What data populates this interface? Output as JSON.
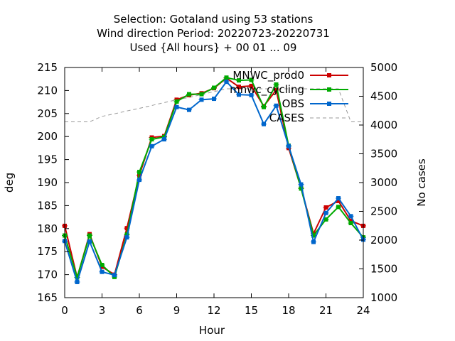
{
  "chart_data": {
    "type": "line",
    "title_lines": [
      "Selection: Gotaland using    53 stations",
      "Wind direction   Period: 20220723-20220731",
      "Used {All hours} + 00 01 ... 09"
    ],
    "xlabel": "Hour",
    "ylabel": "deg",
    "y2label": "No cases",
    "xlim": [
      0,
      24
    ],
    "ylim": [
      165,
      215
    ],
    "y2lim": [
      1000,
      5000
    ],
    "xticks": [
      0,
      3,
      6,
      9,
      12,
      15,
      18,
      21,
      24
    ],
    "yticks": [
      165,
      170,
      175,
      180,
      185,
      190,
      195,
      200,
      205,
      210,
      215
    ],
    "y2ticks": [
      1000,
      1500,
      2000,
      2500,
      3000,
      3500,
      4000,
      4500,
      5000
    ],
    "grid": false,
    "legend_position": "top-right",
    "x": [
      0,
      1,
      2,
      3,
      4,
      5,
      6,
      7,
      8,
      9,
      10,
      11,
      12,
      13,
      14,
      15,
      16,
      17,
      18,
      19,
      20,
      21,
      22,
      23,
      24
    ],
    "series": [
      {
        "name": "MNWC_prod0",
        "color": "#cc0000",
        "values": [
          180.6,
          169.4,
          178.8,
          171.7,
          170.0,
          180.1,
          191.6,
          199.8,
          200.1,
          208.0,
          209.0,
          209.4,
          210.5,
          212.7,
          210.8,
          211.0,
          206.6,
          210.1,
          197.5,
          188.8,
          178.9,
          184.6,
          186.0,
          181.7,
          180.6
        ]
      },
      {
        "name": "mnwc_cycling",
        "color": "#00aa00",
        "values": [
          178.5,
          169.4,
          178.5,
          172.1,
          169.5,
          178.7,
          192.3,
          199.4,
          199.9,
          207.6,
          209.2,
          209.2,
          210.6,
          212.8,
          212.2,
          212.3,
          206.4,
          211.3,
          198.0,
          188.7,
          178.5,
          182.0,
          184.7,
          181.2,
          178.1
        ]
      },
      {
        "name": "OBS",
        "color": "#0066cc",
        "values": [
          177.3,
          168.4,
          177.2,
          170.6,
          169.9,
          178.1,
          190.6,
          197.9,
          199.4,
          206.4,
          205.8,
          208.0,
          208.2,
          211.9,
          209.1,
          209.0,
          202.7,
          206.7,
          197.9,
          189.6,
          177.1,
          183.4,
          186.6,
          182.7,
          177.6
        ]
      },
      {
        "name": "CASES",
        "color": "#999999",
        "axis": "right",
        "x": [
          0,
          1,
          2,
          3,
          4,
          5,
          6,
          7,
          8,
          9,
          10,
          11,
          12,
          13,
          14,
          15,
          16,
          17,
          18,
          19,
          20,
          21,
          22,
          23,
          24
        ],
        "values": [
          4055,
          4055,
          4055,
          4150,
          4195,
          4245,
          4290,
          4340,
          4390,
          4440,
          4480,
          4530,
          4580,
          4630,
          4630,
          4630,
          4630,
          4630,
          4630,
          4630,
          4630,
          4630,
          4630,
          4055,
          4055
        ]
      }
    ]
  }
}
